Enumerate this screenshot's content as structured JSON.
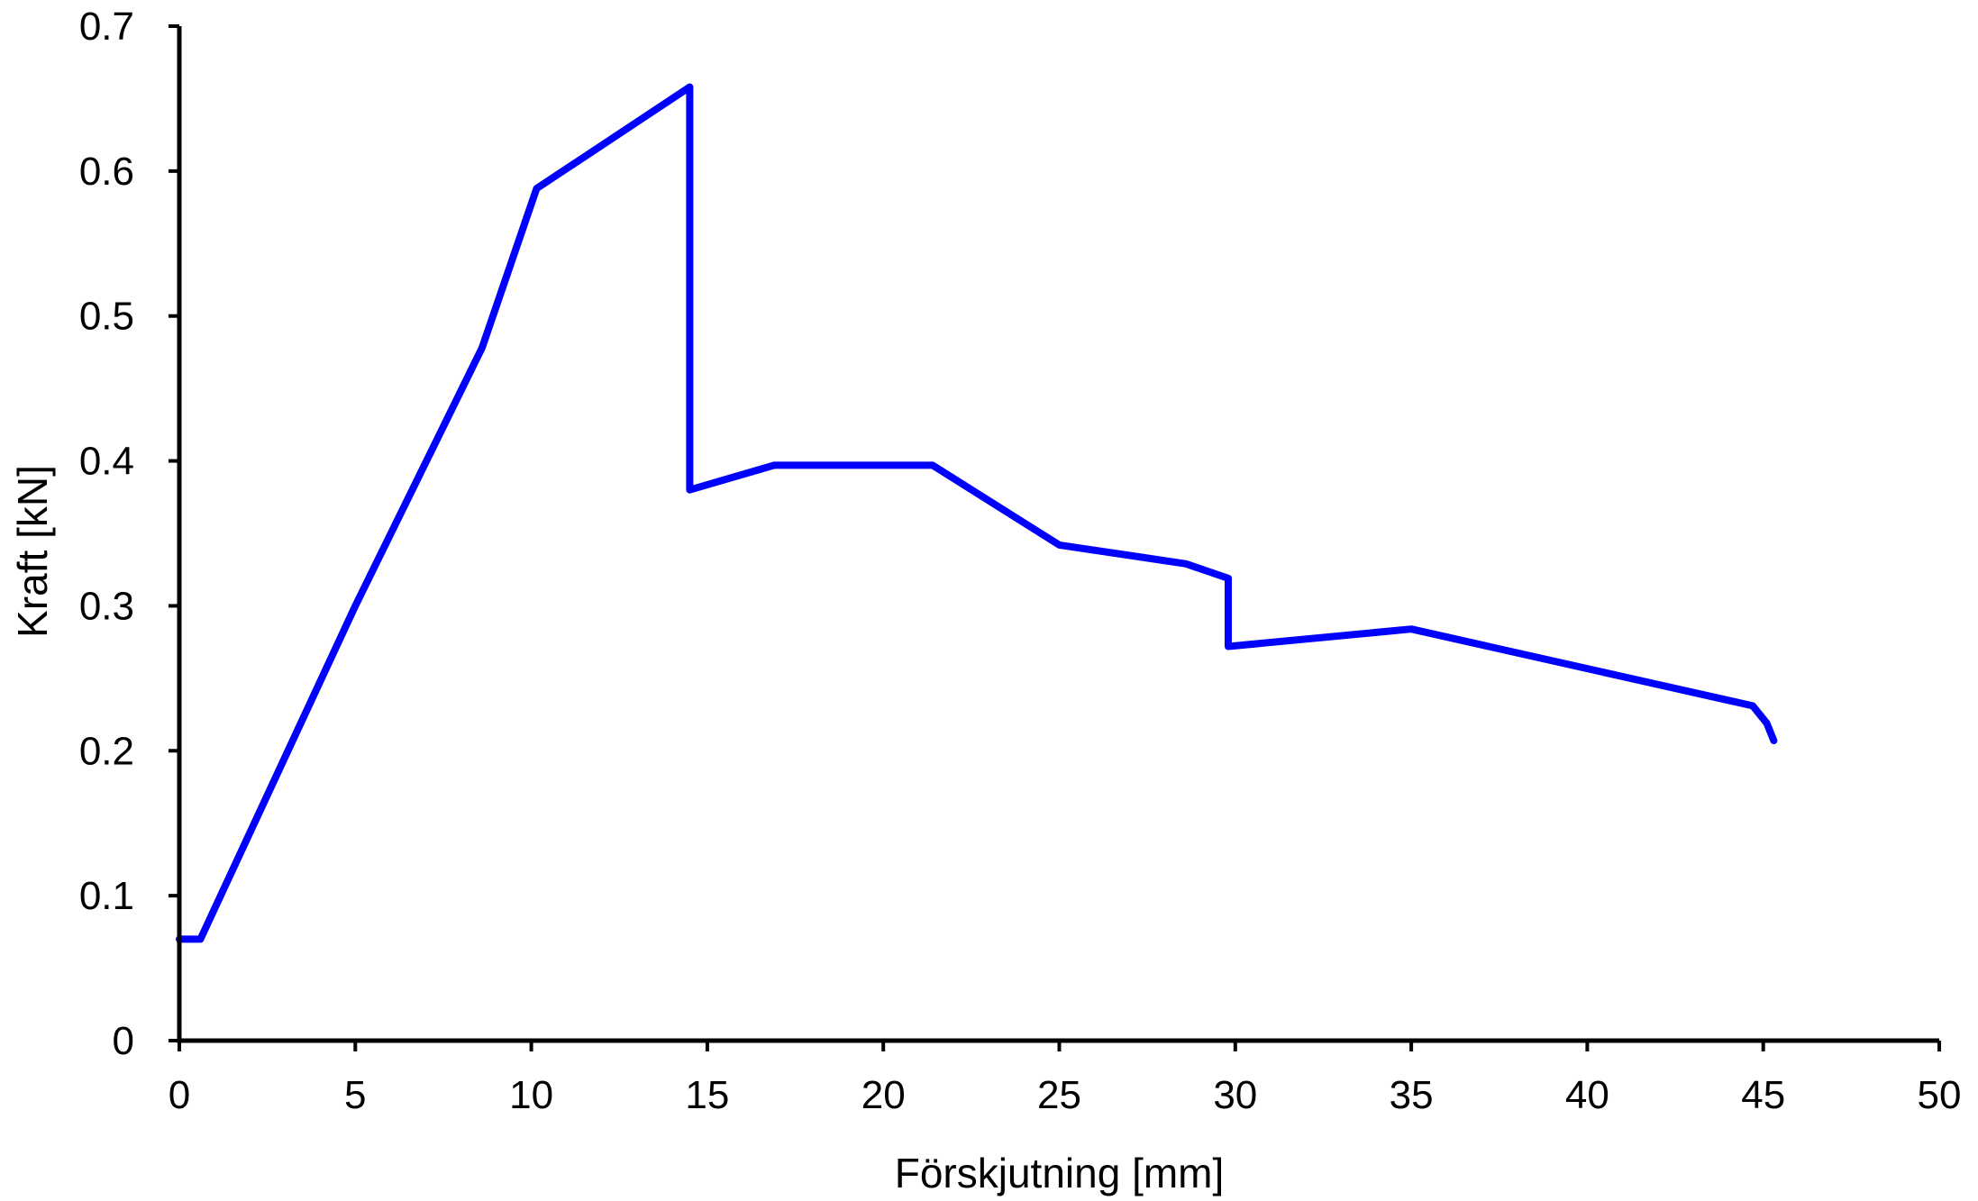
{
  "chart_data": {
    "type": "line",
    "title": "",
    "xlabel": "Förskjutning [mm]",
    "ylabel": "Kraft [kN]",
    "xlim": [
      0,
      50
    ],
    "ylim": [
      0,
      0.7
    ],
    "x_ticks": [
      0,
      5,
      10,
      15,
      20,
      25,
      30,
      35,
      40,
      45,
      50
    ],
    "y_ticks": [
      0,
      0.1,
      0.2,
      0.3,
      0.4,
      0.5,
      0.6,
      0.7
    ],
    "x_tick_labels": [
      "0",
      "5",
      "10",
      "15",
      "20",
      "25",
      "30",
      "35",
      "40",
      "45",
      "50"
    ],
    "y_tick_labels": [
      "0",
      "0.1",
      "0.2",
      "0.3",
      "0.4",
      "0.5",
      "0.6",
      "0.7"
    ],
    "grid": false,
    "legend": "none",
    "series": [
      {
        "color": "#0000ff",
        "x": [
          0,
          0.6,
          5,
          8.6,
          10.15,
          14.5,
          14.5,
          16.9,
          21.4,
          25,
          28.6,
          29.8,
          29.8,
          35,
          44.7,
          45.1,
          45.3
        ],
        "y": [
          0.07,
          0.07,
          0.3,
          0.478,
          0.588,
          0.658,
          0.38,
          0.397,
          0.397,
          0.342,
          0.329,
          0.319,
          0.272,
          0.284,
          0.231,
          0.219,
          0.207
        ]
      }
    ],
    "axis_color": "#000000"
  }
}
